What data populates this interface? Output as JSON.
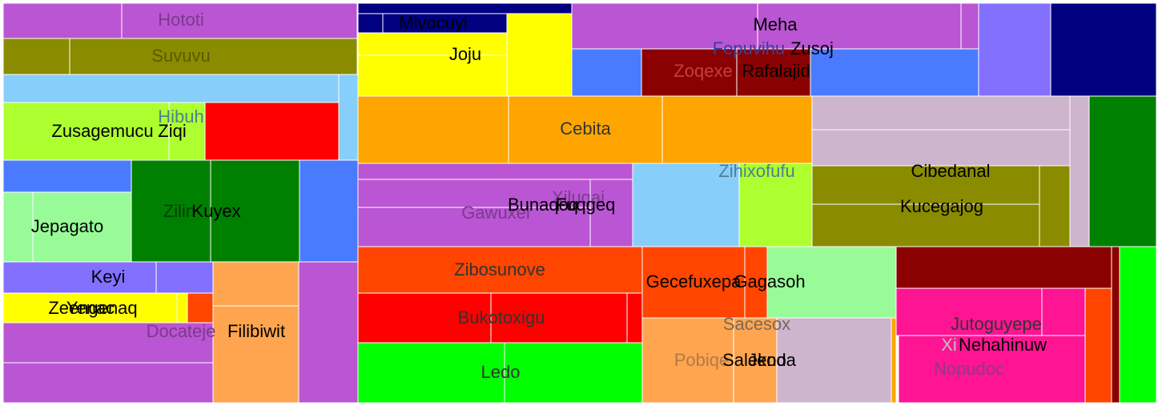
{
  "chart_data": {
    "type": "treemap",
    "title": "",
    "nodes": [
      {
        "label": "Hototi",
        "color": "#BA55D3",
        "label_color": "#7B3A8C"
      },
      {
        "label": "Suvuvu",
        "color": "#8B8B00",
        "label_color": "#5A5A00"
      },
      {
        "label": "Hibuh",
        "color": "#87CEFA",
        "label_color": "#4D7F95"
      },
      {
        "label": "Zusagemucu",
        "color": "#ADFF2F",
        "label_color": "#000000"
      },
      {
        "label": "Ziqi",
        "color": "#ADFF2F",
        "label_color": "#000000"
      },
      {
        "label": "",
        "color": "#FF0000",
        "label_color": "#000000"
      },
      {
        "label": "",
        "color": "#87CEFA",
        "label_color": "#000000"
      },
      {
        "label": "",
        "color": "#4A7BFF",
        "label_color": "#000000"
      },
      {
        "label": "Jepagato",
        "color": "#98FB98",
        "label_color": "#000000"
      },
      {
        "label": "Zilin",
        "color": "#008000",
        "label_color": "#004000"
      },
      {
        "label": "Kuyex",
        "color": "#008000",
        "label_color": "#000000"
      },
      {
        "label": "",
        "color": "#4A7BFF",
        "label_color": "#000000"
      },
      {
        "label": "Keyi",
        "color": "#8470FF",
        "label_color": "#000000"
      },
      {
        "label": "Zeengenaq",
        "color": "#FFFF00",
        "label_color": "#000000"
      },
      {
        "label": "Yenac",
        "color": "#FFFF00",
        "label_color": "#000000"
      },
      {
        "label": "",
        "color": "#FF4500",
        "label_color": "#000000"
      },
      {
        "label": "Docateje",
        "color": "#BA55D3",
        "label_color": "#7B3A8C"
      },
      {
        "label": "Filibiwit",
        "color": "#FFA54F",
        "label_color": "#000000"
      },
      {
        "label": "",
        "color": "#BA55D3",
        "label_color": "#000000"
      },
      {
        "label": "Mivocuyi",
        "color": "#000080",
        "label_color": "#000000"
      },
      {
        "label": "Joju",
        "color": "#FFFF00",
        "label_color": "#000000"
      },
      {
        "label": "Meha",
        "color": "#BA55D3",
        "label_color": "#000000"
      },
      {
        "label": "Fepuvihu",
        "color": "#4A7BFF",
        "label_color": "#3A3FA0"
      },
      {
        "label": "Zusoj",
        "color": "#4A7BFF",
        "label_color": "#000000"
      },
      {
        "label": "Zoqexe",
        "color": "#8B0000",
        "label_color": "#C04040"
      },
      {
        "label": "Rafalajid",
        "color": "#8B0000",
        "label_color": "#000000"
      },
      {
        "label": "",
        "color": "#8470FF",
        "label_color": "#000000"
      },
      {
        "label": "",
        "color": "#000080",
        "label_color": "#000000"
      },
      {
        "label": "Cebita",
        "color": "#FFA500",
        "label_color": "#333333"
      },
      {
        "label": "Cibedanal",
        "color": "#CDB5CD",
        "label_color": "#000000"
      },
      {
        "label": "",
        "color": "#008000",
        "label_color": "#000000"
      },
      {
        "label": "Gawuxel",
        "color": "#BA55D3",
        "label_color": "#7B3A8C"
      },
      {
        "label": "Xiluqai",
        "color": "#BA55D3",
        "label_color": "#7B3A8C"
      },
      {
        "label": "Bunaqoq",
        "color": "#BA55D3",
        "label_color": "#000000"
      },
      {
        "label": "Fuqgeq",
        "color": "#BA55D3",
        "label_color": "#000000"
      },
      {
        "label": "Zihixofufu",
        "color": "#87CEFA",
        "label_color": "#4D7F95"
      },
      {
        "label": "",
        "color": "#ADFF2F",
        "label_color": "#000000"
      },
      {
        "label": "Kucegajog",
        "color": "#8B8B00",
        "label_color": "#000000"
      },
      {
        "label": "Zibosunove",
        "color": "#FF4500",
        "label_color": "#333333"
      },
      {
        "label": "Bukotoxigu",
        "color": "#FF0000",
        "label_color": "#333333"
      },
      {
        "label": "Ledo",
        "color": "#00FF00",
        "label_color": "#333333"
      },
      {
        "label": "Gecefuxepa",
        "color": "#FF4500",
        "label_color": "#000000"
      },
      {
        "label": "Gagasoh",
        "color": "#98FB98",
        "label_color": "#000000"
      },
      {
        "label": "Sacesox",
        "color": "#FFA54F",
        "label_color": "#7A6A5A"
      },
      {
        "label": "Pobiqe",
        "color": "#FFA54F",
        "label_color": "#B07A4A"
      },
      {
        "label": "Salekoda",
        "color": "#FFA54F",
        "label_color": "#000000"
      },
      {
        "label": "Jeno",
        "color": "#CDB5CD",
        "label_color": "#000000"
      },
      {
        "label": "",
        "color": "#FFA500",
        "label_color": "#000000"
      },
      {
        "label": "Jutoguyepe",
        "color": "#8B0000",
        "label_color": "#333333"
      },
      {
        "label": "Xi",
        "color": "#FF1493",
        "label_color": "#C0C0C0"
      },
      {
        "label": "Nehahinuw",
        "color": "#FF1493",
        "label_color": "#000000"
      },
      {
        "label": "Nopudoc",
        "color": "#FF1493",
        "label_color": "#8B3A8B"
      },
      {
        "label": "",
        "color": "#FF4500",
        "label_color": "#000000"
      },
      {
        "label": "",
        "color": "#00FF00",
        "label_color": "#000000"
      }
    ]
  }
}
